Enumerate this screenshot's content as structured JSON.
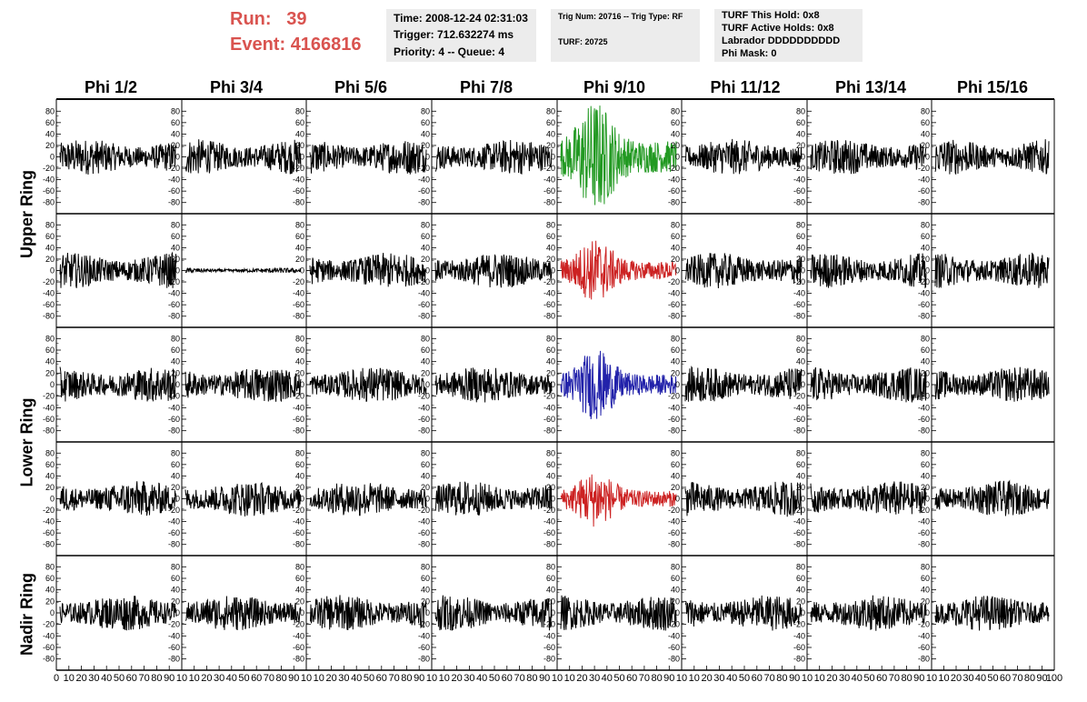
{
  "header": {
    "run_label": "Run:",
    "run_value": "39",
    "event_label": "Event:",
    "event_value": "4166816"
  },
  "info_time": {
    "time": "Time: 2008-12-24 02:31:03",
    "trigger": "Trigger: 712.632274 ms",
    "priority": "Priority: 4 -- Queue: 4"
  },
  "info_trig": {
    "trig": "Trig Num: 20716 -- Trig Type: RF",
    "turf": "TURF: 20725"
  },
  "info_turf": {
    "hold": "TURF This Hold: 0x8",
    "active": "TURF Active Holds: 0x8",
    "labrador": "Labrador DDDDDDDDDD",
    "phimask": "Phi Mask: 0"
  },
  "columns": [
    "Phi 1/2",
    "Phi 3/4",
    "Phi 5/6",
    "Phi 7/8",
    "Phi 9/10",
    "Phi 11/12",
    "Phi 13/14",
    "Phi 15/16"
  ],
  "row_groups": [
    {
      "label": "Upper Ring"
    },
    {
      "label": "Lower Ring"
    },
    {
      "label": "Nadir Ring"
    }
  ],
  "colors": {
    "header_red": "#d9534f",
    "trace_default": "#000000",
    "trace_green": "#229922",
    "trace_red": "#cc2222",
    "trace_blue": "#2222aa"
  },
  "chart_data": {
    "type": "line",
    "ylim": [
      -90,
      90
    ],
    "xlim": [
      0,
      100
    ],
    "y_ticks": [
      -80,
      -60,
      -40,
      -20,
      0,
      20,
      40,
      60,
      80
    ],
    "x_tick_labels": [
      "0",
      "10",
      "20",
      "30",
      "40",
      "50",
      "60",
      "70",
      "80",
      "90",
      "10",
      "10",
      "20",
      "30",
      "40",
      "50",
      "60",
      "70",
      "80",
      "90",
      "10",
      "10",
      "20",
      "30",
      "40",
      "50",
      "60",
      "70",
      "80",
      "90",
      "10",
      "10",
      "20",
      "30",
      "40",
      "50",
      "60",
      "70",
      "80",
      "90",
      "10",
      "10",
      "20",
      "30",
      "40",
      "50",
      "60",
      "70",
      "80",
      "90",
      "10",
      "10",
      "20",
      "30",
      "40",
      "50",
      "60",
      "70",
      "80",
      "90",
      "10",
      "10",
      "20",
      "30",
      "40",
      "50",
      "60",
      "70",
      "80",
      "90",
      "10",
      "10",
      "20",
      "30",
      "40",
      "50",
      "60",
      "70",
      "80",
      "90",
      "100"
    ],
    "rows": 5,
    "cols": 8,
    "panels": [
      {
        "row": 0,
        "col": 4,
        "color": "green",
        "amplitude": 80,
        "burst": true
      },
      {
        "row": 1,
        "col": 4,
        "color": "red",
        "amplitude": 45,
        "burst": true
      },
      {
        "row": 2,
        "col": 4,
        "color": "blue",
        "amplitude": 50,
        "burst": true
      },
      {
        "row": 3,
        "col": 4,
        "color": "red",
        "amplitude": 40,
        "burst": true
      },
      {
        "row": 1,
        "col": 1,
        "color": "black",
        "amplitude": 5,
        "burst": false
      }
    ],
    "default_amplitude": 35
  }
}
